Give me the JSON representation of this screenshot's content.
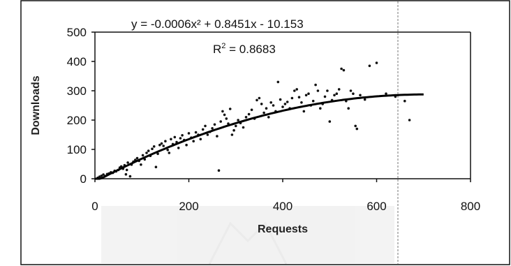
{
  "chart_data": {
    "type": "scatter",
    "xlabel": "Requests",
    "ylabel": "Downloads",
    "xlim": [
      0,
      800
    ],
    "ylim": [
      0,
      500
    ],
    "x_ticks": [
      "0",
      "200",
      "400",
      "600",
      "800"
    ],
    "y_ticks": [
      "0",
      "100",
      "200",
      "300",
      "400",
      "500"
    ],
    "grid": false,
    "legend": "none",
    "trendline": {
      "type": "polynomial-2",
      "coefficients": {
        "a": -0.0006,
        "b": 0.8451,
        "c": -10.153
      },
      "x_range": [
        0,
        700
      ]
    },
    "annotations": {
      "equation": "y = -0.0006x² + 0.8451x - 10.153",
      "r_squared_prefix": "R",
      "r_squared_exponent": "2",
      "r_squared_value": " = 0.8683"
    },
    "series": [
      {
        "points": [
          [
            6,
            3
          ],
          [
            10,
            7
          ],
          [
            14,
            10
          ],
          [
            18,
            14
          ],
          [
            22,
            9
          ],
          [
            26,
            16
          ],
          [
            30,
            18
          ],
          [
            34,
            22
          ],
          [
            38,
            20
          ],
          [
            42,
            27
          ],
          [
            45,
            25
          ],
          [
            50,
            30
          ],
          [
            53,
            38
          ],
          [
            56,
            42
          ],
          [
            60,
            34
          ],
          [
            63,
            46
          ],
          [
            66,
            15
          ],
          [
            68,
            30
          ],
          [
            70,
            55
          ],
          [
            75,
            8
          ],
          [
            78,
            48
          ],
          [
            82,
            58
          ],
          [
            86,
            64
          ],
          [
            90,
            70
          ],
          [
            94,
            61
          ],
          [
            98,
            48
          ],
          [
            102,
            80
          ],
          [
            106,
            66
          ],
          [
            110,
            88
          ],
          [
            114,
            95
          ],
          [
            118,
            78
          ],
          [
            122,
            102
          ],
          [
            126,
            110
          ],
          [
            130,
            40
          ],
          [
            134,
            85
          ],
          [
            138,
            115
          ],
          [
            142,
            120
          ],
          [
            146,
            112
          ],
          [
            150,
            128
          ],
          [
            155,
            98
          ],
          [
            158,
            88
          ],
          [
            162,
            135
          ],
          [
            166,
            118
          ],
          [
            170,
            142
          ],
          [
            174,
            125
          ],
          [
            178,
            105
          ],
          [
            182,
            138
          ],
          [
            186,
            148
          ],
          [
            190,
            132
          ],
          [
            195,
            115
          ],
          [
            200,
            155
          ],
          [
            205,
            140
          ],
          [
            210,
            128
          ],
          [
            215,
            158
          ],
          [
            220,
            150
          ],
          [
            225,
            135
          ],
          [
            230,
            168
          ],
          [
            235,
            180
          ],
          [
            240,
            150
          ],
          [
            245,
            160
          ],
          [
            250,
            172
          ],
          [
            255,
            185
          ],
          [
            260,
            145
          ],
          [
            264,
            28
          ],
          [
            268,
            195
          ],
          [
            272,
            230
          ],
          [
            276,
            218
          ],
          [
            280,
            205
          ],
          [
            284,
            188
          ],
          [
            288,
            238
          ],
          [
            292,
            150
          ],
          [
            296,
            165
          ],
          [
            300,
            180
          ],
          [
            305,
            200
          ],
          [
            310,
            190
          ],
          [
            316,
            175
          ],
          [
            322,
            210
          ],
          [
            328,
            220
          ],
          [
            334,
            235
          ],
          [
            340,
            205
          ],
          [
            345,
            268
          ],
          [
            350,
            275
          ],
          [
            355,
            255
          ],
          [
            360,
            225
          ],
          [
            365,
            240
          ],
          [
            370,
            210
          ],
          [
            375,
            260
          ],
          [
            380,
            250
          ],
          [
            385,
            230
          ],
          [
            390,
            330
          ],
          [
            395,
            270
          ],
          [
            400,
            245
          ],
          [
            405,
            255
          ],
          [
            410,
            262
          ],
          [
            415,
            240
          ],
          [
            420,
            275
          ],
          [
            425,
            300
          ],
          [
            430,
            305
          ],
          [
            435,
            278
          ],
          [
            440,
            260
          ],
          [
            445,
            230
          ],
          [
            450,
            285
          ],
          [
            455,
            290
          ],
          [
            460,
            250
          ],
          [
            465,
            265
          ],
          [
            470,
            320
          ],
          [
            475,
            300
          ],
          [
            480,
            240
          ],
          [
            485,
            255
          ],
          [
            490,
            280
          ],
          [
            495,
            300
          ],
          [
            500,
            195
          ],
          [
            505,
            268
          ],
          [
            510,
            285
          ],
          [
            515,
            290
          ],
          [
            520,
            305
          ],
          [
            525,
            375
          ],
          [
            530,
            370
          ],
          [
            535,
            265
          ],
          [
            540,
            240
          ],
          [
            545,
            300
          ],
          [
            550,
            290
          ],
          [
            555,
            180
          ],
          [
            558,
            170
          ],
          [
            565,
            285
          ],
          [
            575,
            270
          ],
          [
            585,
            385
          ],
          [
            600,
            395
          ],
          [
            620,
            290
          ],
          [
            640,
            280
          ],
          [
            660,
            265
          ],
          [
            670,
            200
          ]
        ]
      }
    ]
  }
}
